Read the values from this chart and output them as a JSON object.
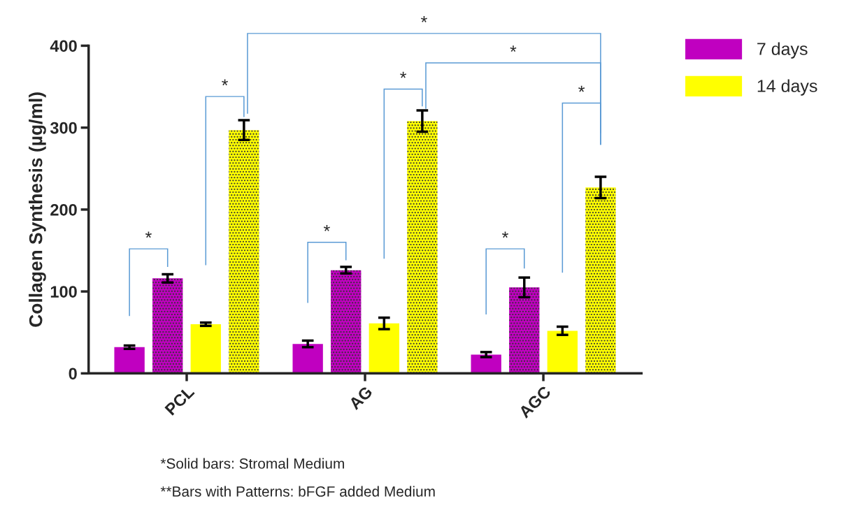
{
  "chart_data": {
    "type": "bar",
    "ylabel": "Collagen Synthesis (µg/ml)",
    "categories": [
      "PCL",
      "AG",
      "AGC"
    ],
    "series": [
      {
        "name": "7 days",
        "color": "#c000c0",
        "values": [
          32,
          36,
          23
        ],
        "errors": [
          2,
          4,
          3
        ]
      },
      {
        "color": "#c000c0",
        "values": [
          116,
          126,
          105
        ],
        "errors": [
          5,
          4,
          12
        ]
      },
      {
        "name": "14 days",
        "color": "#ffff00",
        "values": [
          60,
          61,
          52
        ],
        "errors": [
          2,
          7,
          5
        ]
      },
      {
        "color": "#ffff00",
        "values": [
          297,
          308,
          227
        ],
        "errors": [
          12,
          13,
          13
        ]
      }
    ],
    "ylim": [
      0,
      400
    ],
    "yticks": [
      0,
      100,
      200,
      300,
      400
    ],
    "grid": false,
    "legend": "top right",
    "annotations": [
      "*",
      "*",
      "*",
      "*",
      "*",
      "*",
      "*",
      "*",
      "*Solid bars: Stromal Medium",
      "**Bars with Patterns: bFGF added Medium"
    ]
  }
}
